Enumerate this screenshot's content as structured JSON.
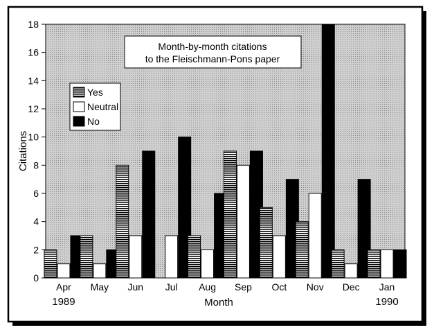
{
  "chart_data": {
    "type": "bar",
    "title": "Month-by-month citations",
    "subtitle": "to the Fleischmann-Pons paper",
    "xlabel": "Month",
    "ylabel": "Citations",
    "ylim": [
      0,
      18
    ],
    "yticks": [
      0,
      2,
      4,
      6,
      8,
      10,
      12,
      14,
      16,
      18
    ],
    "categories": [
      "Apr",
      "May",
      "Jun",
      "Jul",
      "Aug",
      "Sep",
      "Oct",
      "Nov",
      "Dec",
      "Jan"
    ],
    "year_labels": [
      "1989",
      "",
      "",
      "",
      "",
      "",
      "",
      "",
      "",
      "1990"
    ],
    "series": [
      {
        "name": "Yes",
        "values": [
          2,
          3,
          8,
          0,
          3,
          9,
          5,
          4,
          2,
          2
        ],
        "fill": "hatched"
      },
      {
        "name": "Neutral",
        "values": [
          1,
          1,
          3,
          3,
          2,
          8,
          3,
          6,
          1,
          2
        ],
        "fill": "#ffffff"
      },
      {
        "name": "No",
        "values": [
          3,
          2,
          9,
          10,
          6,
          9,
          7,
          18,
          7,
          2
        ],
        "fill": "#000000"
      }
    ],
    "legend_position": "top-left",
    "grid": false,
    "plot_background": "#c8c8c8"
  }
}
